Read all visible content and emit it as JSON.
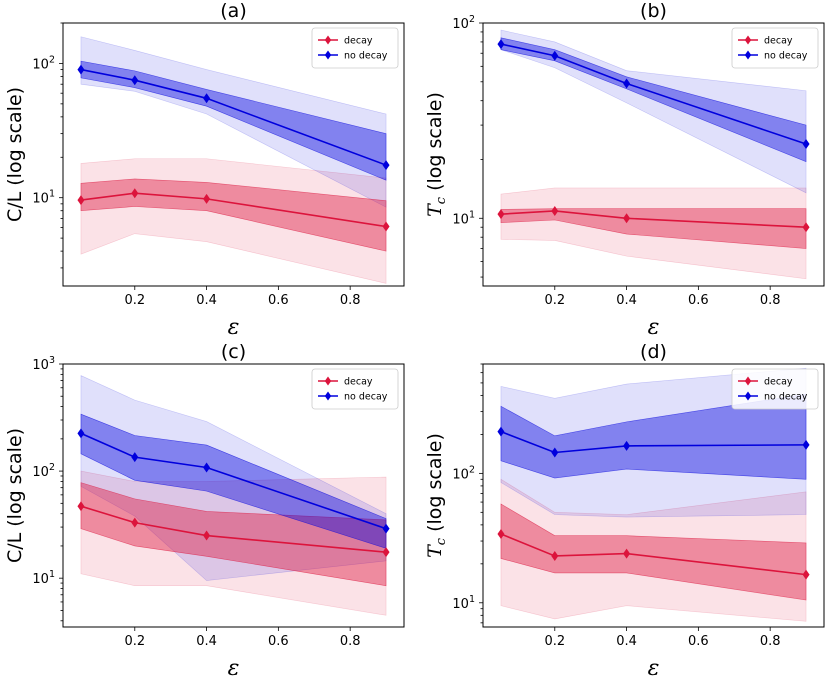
{
  "colors": {
    "decay": "#dc143c",
    "no_decay": "#0000dd"
  },
  "chart_data": [
    {
      "type": "line",
      "title": "(a)",
      "xlabel": "ε",
      "ylabel": "C/L (log scale)",
      "yscale": "log",
      "xlim": [
        0.0,
        0.95
      ],
      "ylim": [
        2.2,
        200
      ],
      "x_ticks": [
        "0.2",
        "0.4",
        "0.6",
        "0.8"
      ],
      "y_ticks": [
        {
          "base": "10",
          "exp": "1",
          "value": 10
        },
        {
          "base": "10",
          "exp": "2",
          "value": 100
        }
      ],
      "legend": {
        "position": "top-right",
        "entries": [
          "decay",
          "no decay"
        ]
      },
      "series": [
        {
          "name": "decay",
          "color_key": "decay",
          "x": [
            0.05,
            0.2,
            0.4,
            0.9
          ],
          "y": [
            9.6,
            10.8,
            9.8,
            6.1
          ],
          "inner": [
            [
              8.0,
              12.8
            ],
            [
              8.6,
              13.8
            ],
            [
              8.0,
              13.0
            ],
            [
              4.0,
              9.5
            ]
          ],
          "outer": [
            [
              3.8,
              18.0
            ],
            [
              5.4,
              19.5
            ],
            [
              4.7,
              19.5
            ],
            [
              2.3,
              14.0
            ]
          ]
        },
        {
          "name": "no decay",
          "color_key": "no_decay",
          "x": [
            0.05,
            0.2,
            0.4,
            0.9
          ],
          "y": [
            90,
            75,
            55,
            17.5
          ],
          "inner": [
            [
              78,
              104
            ],
            [
              66,
              88
            ],
            [
              48,
              64
            ],
            [
              13.5,
              30
            ]
          ],
          "outer": [
            [
              70,
              158
            ],
            [
              62,
              125
            ],
            [
              42,
              90
            ],
            [
              8.5,
              42
            ]
          ]
        }
      ]
    },
    {
      "type": "line",
      "title": "(b)",
      "xlabel": "ε",
      "ylabel": "Tc (log scale)",
      "yscale": "log",
      "xlim": [
        0.0,
        0.95
      ],
      "ylim": [
        4.5,
        100
      ],
      "x_ticks": [
        "0.2",
        "0.4",
        "0.6",
        "0.8"
      ],
      "y_ticks": [
        {
          "base": "10",
          "exp": "1",
          "value": 10
        },
        {
          "base": "10",
          "exp": "2",
          "value": 100
        }
      ],
      "legend": {
        "position": "top-right",
        "entries": [
          "decay",
          "no decay"
        ]
      },
      "series": [
        {
          "name": "decay",
          "color_key": "decay",
          "x": [
            0.05,
            0.2,
            0.4,
            0.9
          ],
          "y": [
            10.5,
            10.9,
            10.0,
            9.0
          ],
          "inner": [
            [
              9.5,
              11.1
            ],
            [
              9.8,
              11.2
            ],
            [
              8.3,
              11.2
            ],
            [
              7.0,
              11.2
            ]
          ],
          "outer": [
            [
              7.8,
              13.3
            ],
            [
              7.7,
              14.3
            ],
            [
              6.4,
              14.3
            ],
            [
              4.9,
              14.3
            ]
          ]
        },
        {
          "name": "no decay",
          "color_key": "no_decay",
          "x": [
            0.05,
            0.2,
            0.4,
            0.9
          ],
          "y": [
            78,
            68,
            49,
            24
          ],
          "inner": [
            [
              73,
              84
            ],
            [
              64,
              73
            ],
            [
              46,
              53
            ],
            [
              19.5,
              30
            ]
          ],
          "outer": [
            [
              73,
              92
            ],
            [
              59,
              80
            ],
            [
              39,
              57
            ],
            [
              13.5,
              45
            ]
          ]
        }
      ]
    },
    {
      "type": "line",
      "title": "(c)",
      "xlabel": "ε",
      "ylabel": "C/L (log scale)",
      "yscale": "log",
      "xlim": [
        0.0,
        0.95
      ],
      "ylim": [
        3.5,
        1000
      ],
      "x_ticks": [
        "0.2",
        "0.4",
        "0.6",
        "0.8"
      ],
      "y_ticks": [
        {
          "base": "10",
          "exp": "1",
          "value": 10
        },
        {
          "base": "10",
          "exp": "2",
          "value": 100
        },
        {
          "base": "10",
          "exp": "3",
          "value": 1000
        }
      ],
      "legend": {
        "position": "top-right",
        "entries": [
          "decay",
          "no decay"
        ]
      },
      "series": [
        {
          "name": "decay",
          "color_key": "decay",
          "x": [
            0.05,
            0.2,
            0.4,
            0.9
          ],
          "y": [
            47,
            33,
            25,
            17.5
          ],
          "inner": [
            [
              29,
              78
            ],
            [
              20,
              55
            ],
            [
              16,
              42
            ],
            [
              8.5,
              35
            ]
          ],
          "outer": [
            [
              11,
              100
            ],
            [
              8.5,
              80
            ],
            [
              8.5,
              80
            ],
            [
              4.5,
              88
            ]
          ]
        },
        {
          "name": "no decay",
          "color_key": "no_decay",
          "x": [
            0.05,
            0.2,
            0.4,
            0.9
          ],
          "y": [
            225,
            135,
            108,
            29
          ],
          "inner": [
            [
              145,
              340
            ],
            [
              82,
              215
            ],
            [
              65,
              175
            ],
            [
              19,
              36
            ]
          ],
          "outer": [
            [
              72,
              780
            ],
            [
              38,
              460
            ],
            [
              9.5,
              290
            ],
            [
              14.5,
              40
            ]
          ]
        }
      ]
    },
    {
      "type": "line",
      "title": "(d)",
      "xlabel": "ε",
      "ylabel": "Tc (log scale)",
      "yscale": "log",
      "xlim": [
        0.0,
        0.95
      ],
      "ylim": [
        6.5,
        700
      ],
      "x_ticks": [
        "0.2",
        "0.4",
        "0.6",
        "0.8"
      ],
      "y_ticks": [
        {
          "base": "10",
          "exp": "1",
          "value": 10
        },
        {
          "base": "10",
          "exp": "2",
          "value": 100
        }
      ],
      "legend": {
        "position": "top-right",
        "entries": [
          "decay",
          "no decay"
        ]
      },
      "series": [
        {
          "name": "decay",
          "color_key": "decay",
          "x": [
            0.05,
            0.2,
            0.4,
            0.9
          ],
          "y": [
            34,
            23,
            24,
            16.5
          ],
          "inner": [
            [
              22,
              58
            ],
            [
              17,
              33
            ],
            [
              17,
              33
            ],
            [
              10.5,
              29
            ]
          ],
          "outer": [
            [
              9.5,
              90
            ],
            [
              7.5,
              50
            ],
            [
              9.5,
              48
            ],
            [
              7.2,
              72
            ]
          ]
        },
        {
          "name": "no decay",
          "color_key": "no_decay",
          "x": [
            0.05,
            0.2,
            0.4,
            0.9
          ],
          "y": [
            210,
            145,
            163,
            166
          ],
          "inner": [
            [
              125,
              330
            ],
            [
              92,
              195
            ],
            [
              108,
              250
            ],
            [
              90,
              410
            ]
          ],
          "outer": [
            [
              85,
              470
            ],
            [
              48,
              380
            ],
            [
              46,
              490
            ],
            [
              48,
              650
            ]
          ]
        }
      ]
    }
  ]
}
